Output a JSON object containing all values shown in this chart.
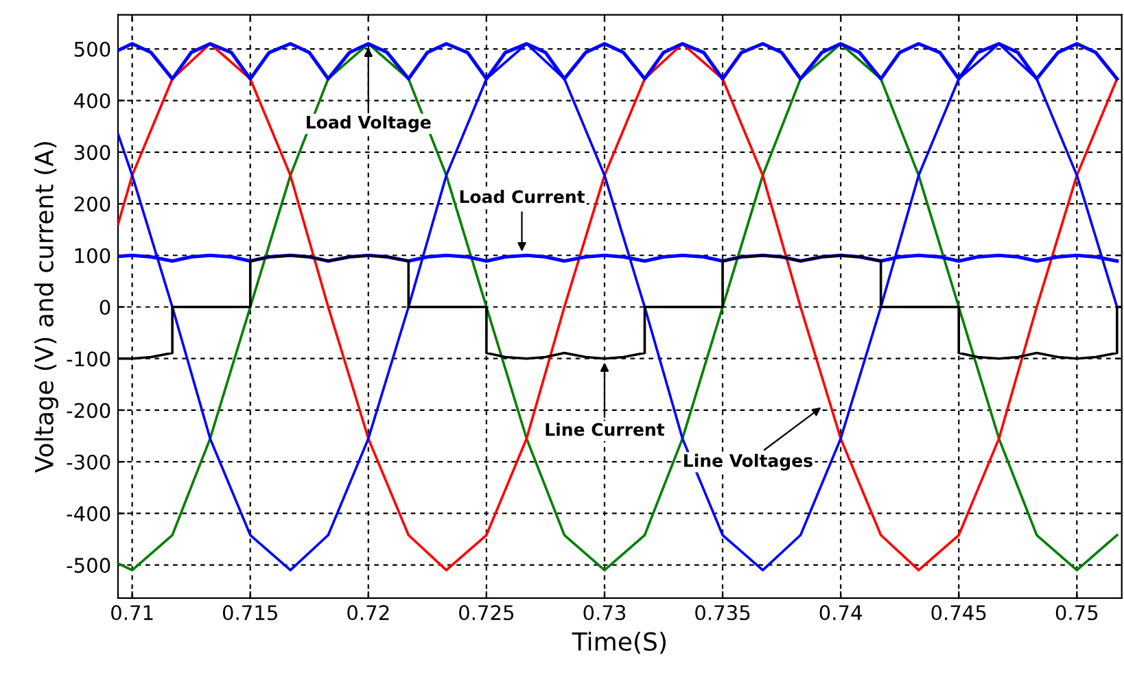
{
  "chart_data": {
    "type": "line",
    "xlabel": "Time(S)",
    "ylabel": "Voltage (V) and current (A)",
    "xlim": [
      0.7094,
      0.7519
    ],
    "ylim": [
      -564,
      566
    ],
    "xticks": [
      0.71,
      0.715,
      0.72,
      0.725,
      0.73,
      0.735,
      0.74,
      0.745,
      0.75
    ],
    "yticks": [
      -500,
      -400,
      -300,
      -200,
      -100,
      0,
      100,
      200,
      300,
      400,
      500
    ],
    "grid": true,
    "marker": "none",
    "line_style": "solid",
    "series": [
      {
        "color": "#008000",
        "x": [
          0.7094,
          0.71,
          0.7117,
          0.7133,
          0.715,
          0.7167,
          0.7183,
          0.72,
          0.7217,
          0.7233,
          0.725,
          0.7267,
          0.7283,
          0.73,
          0.7317,
          0.7333,
          0.735,
          0.7367,
          0.7383,
          0.74,
          0.7417,
          0.7433,
          0.745,
          0.7467,
          0.7483,
          0.75,
          0.7517
        ],
        "values": [
          -497,
          -510,
          -442,
          -255,
          0,
          255,
          442,
          510,
          442,
          255,
          0,
          -255,
          -442,
          -510,
          -442,
          -255,
          0,
          255,
          442,
          510,
          442,
          255,
          0,
          -255,
          -442,
          -510,
          -442
        ]
      },
      {
        "color": "#ff0000",
        "x": [
          0.7094,
          0.71,
          0.7117,
          0.7133,
          0.715,
          0.7167,
          0.7183,
          0.72,
          0.7217,
          0.7233,
          0.725,
          0.7267,
          0.7283,
          0.73,
          0.7317,
          0.7333,
          0.735,
          0.7367,
          0.7383,
          0.74,
          0.7417,
          0.7433,
          0.745,
          0.7467,
          0.7483,
          0.75,
          0.7517
        ],
        "values": [
          160,
          255,
          442,
          510,
          442,
          255,
          0,
          -255,
          -442,
          -510,
          -442,
          -255,
          0,
          255,
          442,
          510,
          442,
          255,
          0,
          -255,
          -442,
          -510,
          -442,
          -255,
          0,
          255,
          442
        ]
      },
      {
        "color": "#0000ff",
        "x": [
          0.7094,
          0.71,
          0.7117,
          0.7133,
          0.715,
          0.7167,
          0.7183,
          0.72,
          0.7217,
          0.7233,
          0.725,
          0.7267,
          0.7283,
          0.73,
          0.7317,
          0.7333,
          0.735,
          0.7367,
          0.7383,
          0.74,
          0.7417,
          0.7433,
          0.745,
          0.7467,
          0.7483,
          0.75,
          0.7517
        ],
        "values": [
          335,
          255,
          0,
          -255,
          -442,
          -510,
          -442,
          -255,
          0,
          255,
          442,
          510,
          442,
          255,
          0,
          -255,
          -442,
          -510,
          -442,
          -255,
          0,
          255,
          442,
          510,
          442,
          255,
          0
        ]
      },
      {
        "color": "#0000ff",
        "x": [
          0.7094,
          0.71,
          0.7108,
          0.7117,
          0.7125,
          0.7133,
          0.7142,
          0.715,
          0.7158,
          0.7167,
          0.7175,
          0.7183,
          0.7192,
          0.72,
          0.7208,
          0.7217,
          0.7225,
          0.7233,
          0.7242,
          0.725,
          0.7258,
          0.7267,
          0.7275,
          0.7283,
          0.7292,
          0.73,
          0.7308,
          0.7317,
          0.7325,
          0.7333,
          0.7342,
          0.735,
          0.7358,
          0.7367,
          0.7375,
          0.7383,
          0.7392,
          0.74,
          0.7408,
          0.7417,
          0.7425,
          0.7433,
          0.7442,
          0.745,
          0.7458,
          0.7467,
          0.7475,
          0.7483,
          0.7492,
          0.75,
          0.7508,
          0.7517
        ],
        "values": [
          497,
          510,
          493,
          442,
          493,
          510,
          493,
          442,
          493,
          510,
          493,
          442,
          493,
          510,
          493,
          442,
          493,
          510,
          493,
          442,
          493,
          510,
          493,
          442,
          493,
          510,
          493,
          442,
          493,
          510,
          493,
          442,
          493,
          510,
          493,
          442,
          493,
          510,
          493,
          442,
          493,
          510,
          493,
          442,
          493,
          510,
          493,
          442,
          493,
          510,
          493,
          442
        ]
      },
      {
        "color": "#0000ff",
        "x": [
          0.7094,
          0.71,
          0.7108,
          0.7117,
          0.7125,
          0.7133,
          0.7142,
          0.715,
          0.7158,
          0.7167,
          0.7175,
          0.7183,
          0.7192,
          0.72,
          0.7208,
          0.7217,
          0.7225,
          0.7233,
          0.7242,
          0.725,
          0.7258,
          0.7267,
          0.7275,
          0.7283,
          0.7292,
          0.73,
          0.7308,
          0.7317,
          0.7325,
          0.7333,
          0.7342,
          0.735,
          0.7358,
          0.7367,
          0.7375,
          0.7383,
          0.7392,
          0.74,
          0.7408,
          0.7417,
          0.7425,
          0.7433,
          0.7442,
          0.745,
          0.7458,
          0.7467,
          0.7475,
          0.7483,
          0.7492,
          0.75,
          0.7508,
          0.7517
        ],
        "values": [
          98,
          100,
          97,
          89,
          97,
          100,
          97,
          89,
          97,
          100,
          97,
          89,
          97,
          100,
          97,
          89,
          97,
          100,
          97,
          89,
          97,
          100,
          97,
          89,
          97,
          100,
          97,
          89,
          97,
          100,
          97,
          89,
          97,
          100,
          97,
          89,
          97,
          100,
          97,
          89,
          97,
          100,
          97,
          89,
          97,
          100,
          97,
          89,
          97,
          100,
          97,
          89
        ]
      },
      {
        "color": "#000000",
        "x": [
          0.7094,
          0.71,
          0.7108,
          0.7117,
          0.7117,
          0.715,
          0.715,
          0.7158,
          0.7167,
          0.7175,
          0.7183,
          0.7192,
          0.72,
          0.7208,
          0.7217,
          0.7217,
          0.725,
          0.725,
          0.7258,
          0.7267,
          0.7275,
          0.7283,
          0.7292,
          0.73,
          0.7308,
          0.7317,
          0.7317,
          0.735,
          0.735,
          0.7358,
          0.7367,
          0.7375,
          0.7383,
          0.7392,
          0.74,
          0.7408,
          0.7417,
          0.7417,
          0.745,
          0.745,
          0.7458,
          0.7467,
          0.7475,
          0.7483,
          0.7492,
          0.75,
          0.7508,
          0.7517,
          0.7517,
          0.7519
        ],
        "values": [
          -100,
          -100,
          -97,
          -89,
          0,
          0,
          89,
          97,
          100,
          97,
          89,
          97,
          100,
          97,
          89,
          0,
          0,
          -89,
          -97,
          -100,
          -97,
          -89,
          -97,
          -100,
          -97,
          -89,
          0,
          0,
          89,
          97,
          100,
          97,
          89,
          97,
          100,
          97,
          89,
          0,
          0,
          -89,
          -97,
          -100,
          -97,
          -89,
          -97,
          -100,
          -97,
          -89,
          0,
          0
        ]
      }
    ],
    "annotations": [
      {
        "text": "Load Voltage",
        "x": 0.72,
        "y": 510
      },
      {
        "text": "Load Current",
        "x": 0.7265,
        "y": 100
      },
      {
        "text": "Line Current",
        "x": 0.73,
        "y": -100
      },
      {
        "text": "Line Voltages",
        "x": 0.7393,
        "y": -190
      }
    ]
  }
}
